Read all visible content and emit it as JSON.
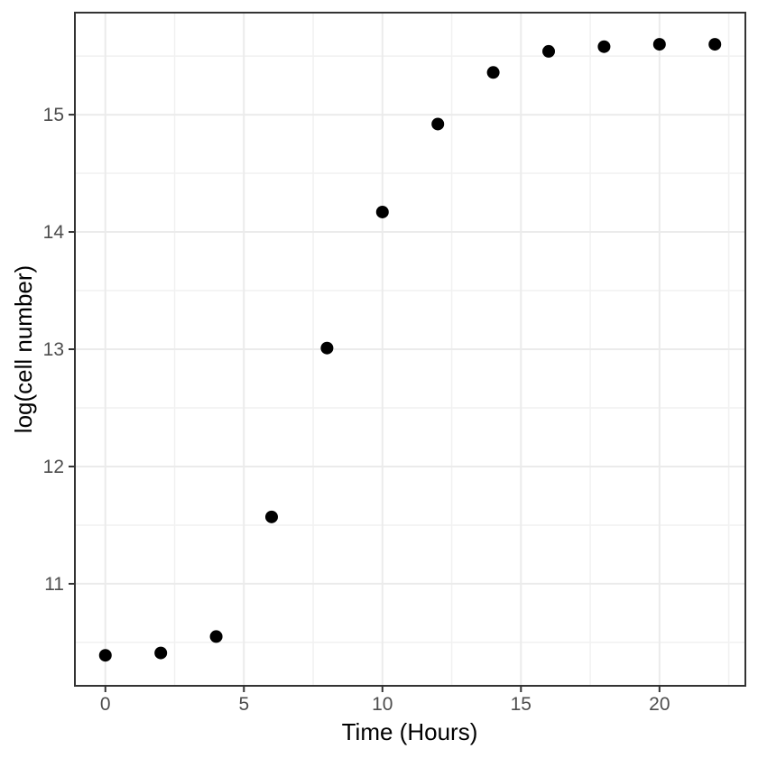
{
  "chart_data": {
    "type": "scatter",
    "title": "",
    "xlabel": "Time (Hours)",
    "ylabel": "log(cell number)",
    "x": [
      0,
      2,
      4,
      6,
      8,
      10,
      12,
      14,
      16,
      18,
      20,
      22
    ],
    "y": [
      10.39,
      10.41,
      10.55,
      11.57,
      13.01,
      14.17,
      14.92,
      15.36,
      15.54,
      15.58,
      15.6,
      15.6
    ],
    "xlim": [
      -1.1,
      23.1
    ],
    "ylim": [
      10.13,
      15.87
    ],
    "x_ticks": [
      0,
      5,
      10,
      15,
      20
    ],
    "y_ticks": [
      11,
      12,
      13,
      14,
      15
    ],
    "x_minor_ticks": [
      2.5,
      7.5,
      12.5,
      17.5,
      22.5
    ],
    "y_minor_ticks": [
      10.5,
      11.5,
      12.5,
      13.5,
      14.5,
      15.5
    ],
    "grid": true,
    "legend_position": "none",
    "colors": {
      "point": "#000000",
      "grid_major": "#ebebeb",
      "grid_minor": "#f1f1f1",
      "panel_border": "#333333",
      "tick_mark": "#333333",
      "tick_label": "#4d4d4d",
      "axis_title": "#000000",
      "panel_background": "#ffffff"
    },
    "point_radius": 7
  }
}
